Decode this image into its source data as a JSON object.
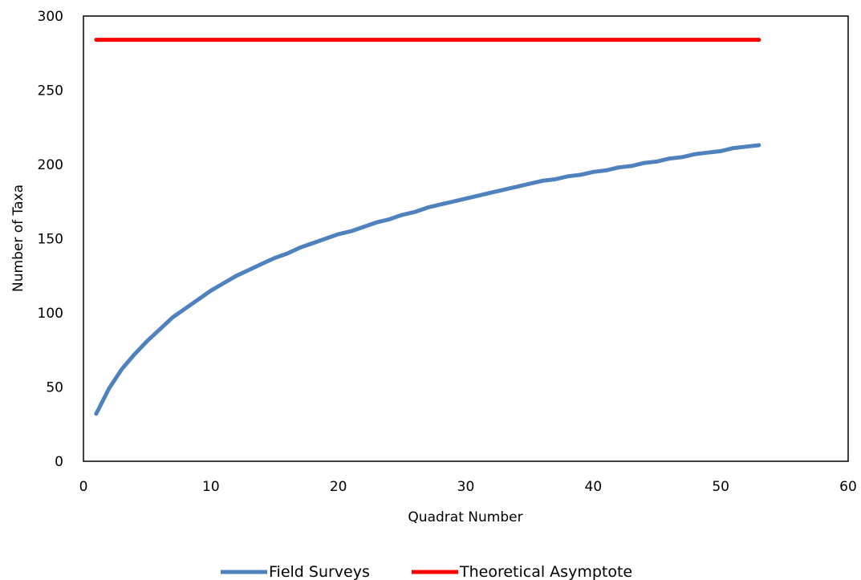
{
  "chart_data": {
    "type": "line",
    "xlabel": "Quadrat Number",
    "ylabel": "Number of Taxa",
    "xlim": [
      0,
      60
    ],
    "ylim": [
      0,
      300
    ],
    "xticks": [
      0,
      10,
      20,
      30,
      40,
      50,
      60
    ],
    "yticks": [
      0,
      50,
      100,
      150,
      200,
      250,
      300
    ],
    "grid": false,
    "legend_position": "bottom",
    "series": [
      {
        "name": "Field Surveys",
        "color": "#4f81bd",
        "x": [
          1,
          2,
          3,
          4,
          5,
          6,
          7,
          8,
          9,
          10,
          11,
          12,
          13,
          14,
          15,
          16,
          17,
          18,
          19,
          20,
          21,
          22,
          23,
          24,
          25,
          26,
          27,
          28,
          29,
          30,
          31,
          32,
          33,
          34,
          35,
          36,
          37,
          38,
          39,
          40,
          41,
          42,
          43,
          44,
          45,
          46,
          47,
          48,
          49,
          50,
          51,
          52,
          53
        ],
        "y": [
          32,
          49,
          62,
          72,
          81,
          89,
          97,
          103,
          109,
          115,
          120,
          125,
          129,
          133,
          137,
          140,
          144,
          147,
          150,
          153,
          155,
          158,
          161,
          163,
          166,
          168,
          171,
          173,
          175,
          177,
          179,
          181,
          183,
          185,
          187,
          189,
          190,
          192,
          193,
          195,
          196,
          198,
          199,
          201,
          202,
          204,
          205,
          207,
          208,
          209,
          211,
          212,
          213
        ]
      },
      {
        "name": "Theoretical Asymptote",
        "color": "#ff0000",
        "x": [
          1,
          53
        ],
        "y": [
          284,
          284
        ]
      }
    ]
  }
}
